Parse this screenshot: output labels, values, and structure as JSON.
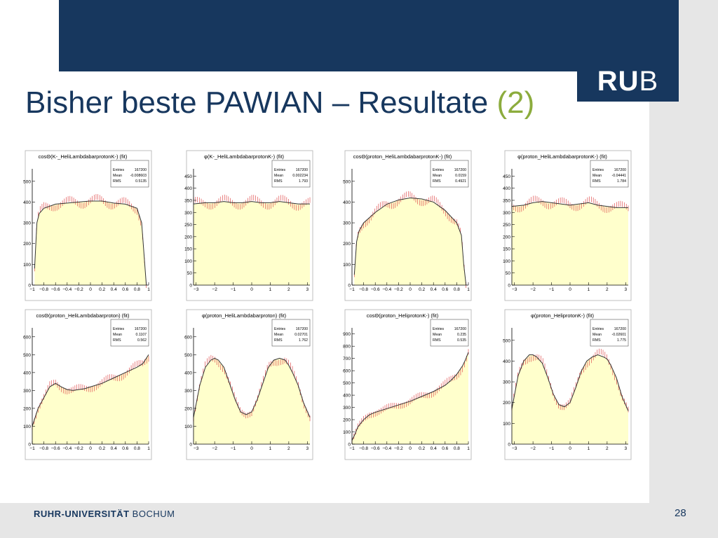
{
  "slide": {
    "title_main": "Bisher beste PAWIAN – Resultate ",
    "title_accent": "(2)",
    "logo_bold": "RU",
    "logo_thin": "B",
    "footer_bold": "RUHR-UNIVERSITÄT",
    "footer_thin": " BOCHUM",
    "page_number": "28",
    "colors": {
      "brand": "#17375e",
      "accent": "#8cac3d",
      "fill": "#ffffcc",
      "data": "#e05050",
      "fit": "#333333"
    }
  },
  "chart_data": [
    {
      "type": "area",
      "title": "cosΘ(K-_HeliLambdabarprotonK-) (fit)",
      "stats": {
        "Entries": "167200",
        "Mean": "-0.008603",
        "RMS": "0.5135"
      },
      "xlim": [
        -1,
        1
      ],
      "ylim": [
        0,
        560
      ],
      "xticks": [
        -1,
        -0.8,
        -0.6,
        -0.4,
        -0.2,
        0,
        0.2,
        0.4,
        0.6,
        0.8,
        1
      ],
      "xticklabels": [
        "−1",
        "−0.8",
        "−0.6",
        "−0.4",
        "−0.2",
        "0",
        "0.2",
        "0.4",
        "0.6",
        "0.8",
        "1"
      ],
      "yticks": [
        0,
        100,
        200,
        300,
        400,
        500
      ],
      "x": [
        -0.96,
        -0.92,
        -0.88,
        -0.8,
        -0.6,
        -0.4,
        -0.2,
        0,
        0.2,
        0.4,
        0.6,
        0.8,
        0.88,
        0.92,
        0.96
      ],
      "y": [
        80,
        300,
        345,
        370,
        390,
        395,
        400,
        405,
        405,
        395,
        390,
        370,
        300,
        150,
        0
      ]
    },
    {
      "type": "area",
      "title": "φ(K-_HeliLambdabarprotonK-) (fit)",
      "stats": {
        "Entries": "167200",
        "Mean": "0.002234",
        "RMS": "1.793"
      },
      "xlim": [
        -3.14,
        3.14
      ],
      "ylim": [
        0,
        480
      ],
      "xticks": [
        -3,
        -2,
        -1,
        0,
        1,
        2,
        3
      ],
      "xticklabels": [
        "−3",
        "−2",
        "−1",
        "0",
        "1",
        "2",
        "3"
      ],
      "yticks": [
        0,
        50,
        100,
        150,
        200,
        250,
        300,
        350,
        400,
        450
      ],
      "x": [
        -3.14,
        -2.5,
        -2,
        -1.5,
        -1,
        -0.5,
        0,
        0.5,
        1,
        1.5,
        2,
        2.5,
        3.14
      ],
      "y": [
        335,
        340,
        340,
        345,
        340,
        340,
        345,
        340,
        340,
        345,
        340,
        335,
        335
      ]
    },
    {
      "type": "area",
      "title": "cosΘ(proton_HeliLambdabarprotonK-) (fit)",
      "stats": {
        "Entries": "167200",
        "Mean": "0.0159",
        "RMS": "0.4921"
      },
      "xlim": [
        -1,
        1
      ],
      "ylim": [
        0,
        560
      ],
      "xticks": [
        -1,
        -0.8,
        -0.6,
        -0.4,
        -0.2,
        0,
        0.2,
        0.4,
        0.6,
        0.8,
        1
      ],
      "xticklabels": [
        "−1",
        "−0.8",
        "−0.6",
        "−0.4",
        "−0.2",
        "0",
        "0.2",
        "0.4",
        "0.6",
        "0.8",
        "1"
      ],
      "yticks": [
        0,
        100,
        200,
        300,
        400,
        500
      ],
      "x": [
        -0.96,
        -0.92,
        -0.88,
        -0.8,
        -0.6,
        -0.4,
        -0.2,
        0,
        0.2,
        0.4,
        0.6,
        0.8,
        0.88,
        0.92,
        0.96
      ],
      "y": [
        50,
        210,
        260,
        300,
        350,
        390,
        410,
        420,
        415,
        400,
        360,
        300,
        240,
        100,
        0
      ]
    },
    {
      "type": "area",
      "title": "φ(proton_HeliLambdabarprotonK-) (fit)",
      "stats": {
        "Entries": "167200",
        "Mean": "-0.04441",
        "RMS": "1.784"
      },
      "xlim": [
        -3.14,
        3.14
      ],
      "ylim": [
        0,
        480
      ],
      "xticks": [
        -3,
        -2,
        -1,
        0,
        1,
        2,
        3
      ],
      "xticklabels": [
        "−3",
        "−2",
        "−1",
        "0",
        "1",
        "2",
        "3"
      ],
      "yticks": [
        0,
        50,
        100,
        150,
        200,
        250,
        300,
        350,
        400,
        450
      ],
      "x": [
        -3.14,
        -2.5,
        -2,
        -1.5,
        -1,
        -0.5,
        0,
        0.5,
        1,
        1.5,
        2,
        2.5,
        3.14
      ],
      "y": [
        325,
        330,
        340,
        345,
        340,
        335,
        330,
        335,
        340,
        330,
        325,
        320,
        320
      ]
    },
    {
      "type": "area",
      "title": "cosΘ(proton_HeliLambdabarproton) (fit)",
      "stats": {
        "Entries": "167200",
        "Mean": "0.1107",
        "RMS": "0.562"
      },
      "xlim": [
        -1,
        1
      ],
      "ylim": [
        0,
        650
      ],
      "xticks": [
        -1,
        -0.8,
        -0.6,
        -0.4,
        -0.2,
        0,
        0.2,
        0.4,
        0.6,
        0.8,
        1
      ],
      "xticklabels": [
        "−1",
        "−0.8",
        "−0.6",
        "−0.4",
        "−0.2",
        "0",
        "0.2",
        "0.4",
        "0.6",
        "0.8",
        "1"
      ],
      "yticks": [
        0,
        100,
        200,
        300,
        400,
        500,
        600
      ],
      "x": [
        -1,
        -0.9,
        -0.8,
        -0.7,
        -0.6,
        -0.5,
        -0.4,
        -0.3,
        -0.2,
        -0.1,
        0,
        0.2,
        0.4,
        0.6,
        0.8,
        0.9,
        1
      ],
      "y": [
        100,
        200,
        260,
        320,
        340,
        320,
        305,
        300,
        305,
        310,
        320,
        340,
        370,
        400,
        430,
        450,
        500
      ]
    },
    {
      "type": "area",
      "title": "φ(proton_HeliLambdabarproton) (fit)",
      "stats": {
        "Entries": "167200",
        "Mean": "0.02701",
        "RMS": "1.762"
      },
      "xlim": [
        -3.14,
        3.14
      ],
      "ylim": [
        0,
        650
      ],
      "xticks": [
        -3,
        -2,
        -1,
        0,
        1,
        2,
        3
      ],
      "xticklabels": [
        "−3",
        "−2",
        "−1",
        "0",
        "1",
        "2",
        "3"
      ],
      "yticks": [
        0,
        100,
        200,
        300,
        400,
        500,
        600
      ],
      "x": [
        -3.14,
        -2.8,
        -2.5,
        -2.2,
        -2,
        -1.8,
        -1.5,
        -1.2,
        -0.9,
        -0.6,
        -0.3,
        0,
        0.3,
        0.6,
        0.9,
        1.2,
        1.5,
        1.8,
        2,
        2.2,
        2.5,
        2.8,
        3.14
      ],
      "y": [
        150,
        330,
        430,
        470,
        480,
        470,
        430,
        340,
        250,
        180,
        165,
        180,
        250,
        340,
        430,
        470,
        480,
        470,
        440,
        400,
        330,
        230,
        150
      ]
    },
    {
      "type": "area",
      "title": "cosΘ(proton_HeliprotonK-) (fit)",
      "stats": {
        "Entries": "167200",
        "Mean": "0.235",
        "RMS": "0.535"
      },
      "xlim": [
        -1,
        1
      ],
      "ylim": [
        0,
        950
      ],
      "xticks": [
        -1,
        -0.8,
        -0.6,
        -0.4,
        -0.2,
        0,
        0.2,
        0.4,
        0.6,
        0.8,
        1
      ],
      "xticklabels": [
        "−1",
        "−0.8",
        "−0.6",
        "−0.4",
        "−0.2",
        "0",
        "0.2",
        "0.4",
        "0.6",
        "0.8",
        "1"
      ],
      "yticks": [
        0,
        100,
        200,
        300,
        400,
        500,
        600,
        700,
        800,
        900
      ],
      "x": [
        -1,
        -0.95,
        -0.9,
        -0.8,
        -0.7,
        -0.6,
        -0.4,
        -0.2,
        0,
        0.2,
        0.4,
        0.6,
        0.7,
        0.8,
        0.9,
        0.95,
        1
      ],
      "y": [
        30,
        80,
        140,
        200,
        240,
        260,
        290,
        320,
        350,
        390,
        430,
        480,
        520,
        570,
        640,
        690,
        750
      ]
    },
    {
      "type": "area",
      "title": "φ(proton_HeliprotonK-) (fit)",
      "stats": {
        "Entries": "167200",
        "Mean": "-0.02601",
        "RMS": "1.775"
      },
      "xlim": [
        -3.14,
        3.14
      ],
      "ylim": [
        0,
        560
      ],
      "xticks": [
        -3,
        -2,
        -1,
        0,
        1,
        2,
        3
      ],
      "xticklabels": [
        "−3",
        "−2",
        "−1",
        "0",
        "1",
        "2",
        "3"
      ],
      "yticks": [
        0,
        100,
        200,
        300,
        400,
        500
      ],
      "x": [
        -3.14,
        -2.8,
        -2.5,
        -2.2,
        -2,
        -1.8,
        -1.5,
        -1.2,
        -0.9,
        -0.6,
        -0.3,
        0,
        0.3,
        0.6,
        0.9,
        1.2,
        1.5,
        1.8,
        2,
        2.2,
        2.5,
        2.8,
        3.14
      ],
      "y": [
        170,
        330,
        400,
        430,
        430,
        420,
        390,
        320,
        240,
        190,
        180,
        200,
        270,
        350,
        400,
        420,
        430,
        420,
        410,
        380,
        320,
        230,
        160
      ]
    }
  ]
}
